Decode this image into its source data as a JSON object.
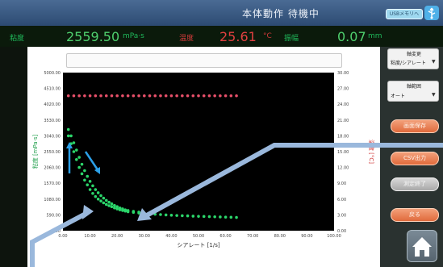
{
  "header": {
    "status_title": "本体動作 待機中",
    "usb_button_label": "USBメモリへ",
    "usb_icon": "usb-icon"
  },
  "readout": {
    "viscosity_label": "粘度",
    "viscosity_value": "2559.50",
    "viscosity_unit": "mPa·s",
    "temperature_label": "温度",
    "temperature_value": "25.61",
    "temperature_unit": "°C",
    "amplitude_label": "振幅",
    "amplitude_value": "0.07",
    "amplitude_unit": "mm"
  },
  "right_panel": {
    "select1_label": "軸変更",
    "select1_value": "粘度/シアレート",
    "select2_label": "軸範囲",
    "select2_value": "オート",
    "buttons": [
      {
        "label": "画面保存",
        "style": "orange"
      },
      {
        "label": "CSV出力",
        "style": "orange"
      },
      {
        "label": "測定終了",
        "style": "gray"
      },
      {
        "label": "戻る",
        "style": "orange"
      }
    ],
    "home_icon": "home-icon"
  },
  "chart_data": {
    "type": "scatter",
    "title": "",
    "xlabel": "シアレート [1/s]",
    "ylabel": "粘度 [mPa·s]",
    "y2label": "温度 [°C]",
    "xlim": [
      0,
      100
    ],
    "ylim": [
      0,
      5000
    ],
    "y2lim": [
      0,
      30
    ],
    "x_ticks": [
      "0.00",
      "10.00",
      "20.00",
      "30.00",
      "40.00",
      "50.00",
      "60.00",
      "70.00",
      "80.00",
      "90.00",
      "100.00"
    ],
    "y_ticks": [
      "0.00",
      "590.00",
      "1080.00",
      "1570.00",
      "2060.00",
      "2550.00",
      "3040.00",
      "3530.00",
      "4020.00",
      "4510.00",
      "5000.00"
    ],
    "y2_ticks": [
      "0.00",
      "3.00",
      "6.00",
      "9.00",
      "12.00",
      "15.00",
      "18.00",
      "21.00",
      "24.00",
      "27.00",
      "30.00"
    ],
    "grid": false,
    "series": [
      {
        "color": "#2bd66a",
        "x": [
          2,
          3,
          4,
          5,
          6,
          7,
          8,
          9,
          10,
          11,
          12,
          13,
          14,
          15,
          16,
          17,
          18,
          19,
          20,
          21,
          22,
          23,
          24,
          26,
          28,
          30,
          32,
          34,
          36,
          38,
          40,
          42,
          44,
          46,
          48,
          50,
          52,
          54,
          56,
          58,
          60,
          62,
          64
        ],
        "y": [
          3000,
          2750,
          2500,
          2250,
          2000,
          1800,
          1600,
          1450,
          1300,
          1180,
          1080,
          1000,
          940,
          880,
          830,
          790,
          760,
          720,
          690,
          660,
          640,
          620,
          600,
          580,
          560,
          545,
          530,
          520,
          510,
          500,
          490,
          480,
          475,
          470,
          460,
          455,
          450,
          445,
          440,
          435,
          430,
          425,
          420
        ]
      },
      {
        "color": "#2bd66a",
        "x": [
          2,
          3,
          4,
          5,
          6,
          7,
          8,
          9,
          10,
          11,
          12,
          13,
          14,
          15,
          16,
          17,
          18,
          19,
          20,
          21,
          22,
          23,
          24,
          26,
          28
        ],
        "y": [
          3200,
          3000,
          2780,
          2550,
          2320,
          2100,
          1900,
          1720,
          1560,
          1420,
          1300,
          1200,
          1110,
          1030,
          960,
          900,
          850,
          800,
          760,
          720,
          690,
          660,
          640,
          610,
          590
        ]
      },
      {
        "color": "#e8506a",
        "axis": "right",
        "x": [
          2,
          4,
          6,
          8,
          10,
          12,
          14,
          16,
          18,
          20,
          22,
          24,
          26,
          28,
          30,
          32,
          34,
          36,
          38,
          40,
          42,
          44,
          46,
          48,
          50,
          52,
          54,
          56,
          58,
          60,
          62,
          64
        ],
        "y": [
          25.6,
          25.6,
          25.6,
          25.6,
          25.6,
          25.6,
          25.6,
          25.6,
          25.6,
          25.6,
          25.6,
          25.6,
          25.6,
          25.6,
          25.6,
          25.6,
          25.6,
          25.6,
          25.6,
          25.6,
          25.6,
          25.6,
          25.6,
          25.6,
          25.6,
          25.6,
          25.6,
          25.6,
          25.6,
          25.6,
          25.6,
          25.6
        ]
      }
    ]
  }
}
